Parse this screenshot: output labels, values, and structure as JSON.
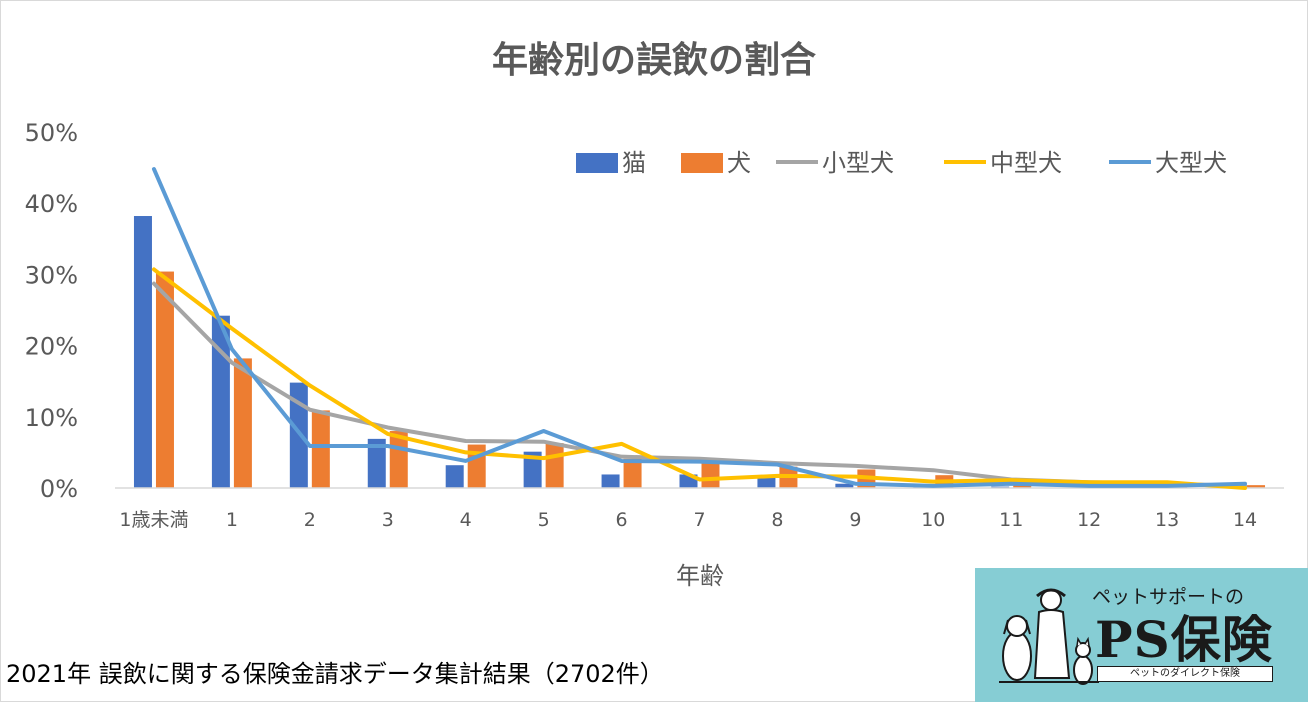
{
  "chart_data": {
    "type": "bar",
    "title": "年齢別の誤飲の割合",
    "xlabel": "年齢",
    "ylabel": "",
    "ylim": [
      0,
      50
    ],
    "y_ticks": [
      "0%",
      "10%",
      "20%",
      "30%",
      "40%",
      "50%"
    ],
    "y_tick_values": [
      0,
      10,
      20,
      30,
      40,
      50
    ],
    "categories": [
      "1歳未満",
      "1",
      "2",
      "3",
      "4",
      "5",
      "6",
      "7",
      "8",
      "9",
      "10",
      "11",
      "12",
      "13",
      "14"
    ],
    "legend_position": "top-right",
    "grid": false,
    "bar_series": [
      {
        "name": "猫",
        "color": "#4472c4",
        "values": [
          38.2,
          24.2,
          14.8,
          6.9,
          3.2,
          5.1,
          1.9,
          1.9,
          1.6,
          0.6,
          0.3,
          0.2,
          0,
          0,
          0
        ]
      },
      {
        "name": "犬",
        "color": "#ed7d31",
        "values": [
          30.4,
          18.2,
          10.9,
          8.0,
          6.1,
          6.3,
          4.1,
          3.6,
          3.0,
          2.6,
          1.8,
          1.0,
          0.6,
          0.6,
          0.4
        ]
      }
    ],
    "line_series": [
      {
        "name": "小型犬",
        "color": "#a5a5a5",
        "values": [
          28.7,
          17.6,
          11.0,
          8.5,
          6.6,
          6.5,
          4.4,
          4.1,
          3.5,
          3.1,
          2.5,
          1.2,
          0.8,
          0.6,
          0.3
        ]
      },
      {
        "name": "中型犬",
        "color": "#ffc000",
        "values": [
          30.7,
          22.4,
          14.4,
          7.6,
          5.0,
          4.2,
          6.2,
          1.2,
          1.7,
          1.6,
          0.9,
          1.1,
          0.8,
          0.8,
          0.0
        ]
      },
      {
        "name": "大型犬",
        "color": "#5b9bd5",
        "values": [
          44.8,
          19.5,
          5.9,
          5.9,
          3.8,
          8.0,
          3.8,
          3.7,
          3.3,
          0.6,
          0.3,
          0.6,
          0.3,
          0.3,
          0.6
        ]
      }
    ]
  },
  "footnote": "2021年 誤飲に関する保険金請求データ集計結果（2702件）",
  "logo": {
    "tagline": "ペットサポートの",
    "name": "PS保険",
    "subline": "ペットのダイレクト保険",
    "icon": "dog-cat-person-icon",
    "background": "#86cdd4"
  }
}
